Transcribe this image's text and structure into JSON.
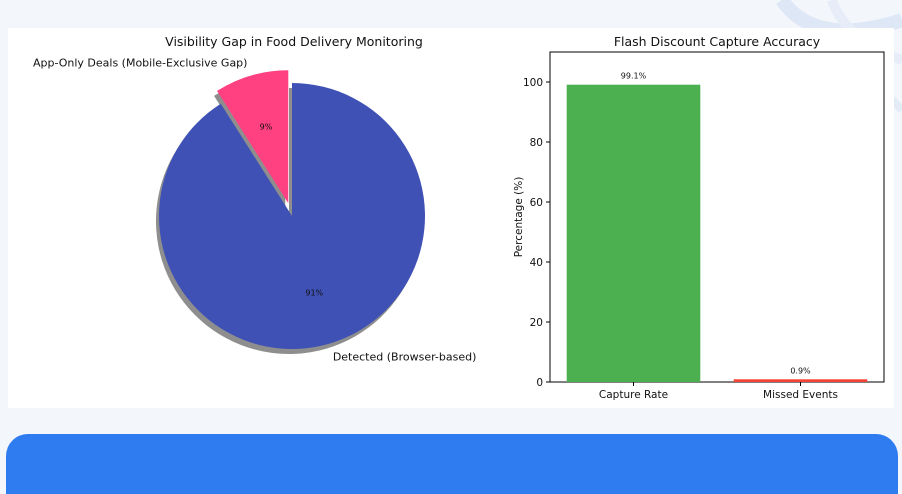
{
  "chart_data": [
    {
      "type": "pie",
      "title": "Visibility Gap in Food Delivery Monitoring",
      "labels": [
        "Detected (Browser-based)",
        "App-Only Deals (Mobile-Exclusive Gap)"
      ],
      "values": [
        91,
        9
      ],
      "pct_labels": [
        "91%",
        "9%"
      ],
      "colors": [
        "#3f51b5",
        "#ff4081"
      ],
      "exploded": [
        false,
        true
      ],
      "shadow": true
    },
    {
      "type": "bar",
      "title": "Flash Discount Capture Accuracy",
      "categories": [
        "Capture Rate",
        "Missed Events"
      ],
      "values": [
        99.1,
        0.9
      ],
      "value_labels": [
        "99.1%",
        "0.9%"
      ],
      "colors": [
        "#4caf50",
        "#f44336"
      ],
      "xlabel": "",
      "ylabel": "Percentage (%)",
      "ylim": [
        0,
        110
      ],
      "yticks": [
        "0",
        "20",
        "40",
        "60",
        "80",
        "100"
      ],
      "grid": false
    }
  ]
}
